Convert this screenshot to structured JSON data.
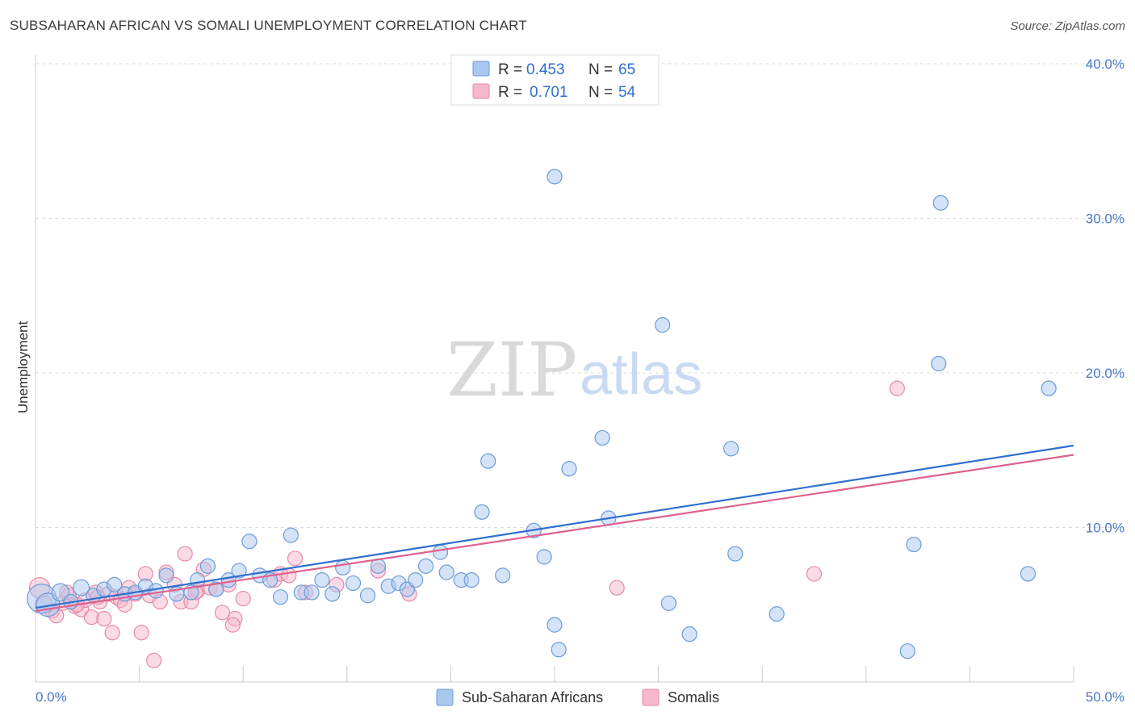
{
  "header": {
    "title": "SUBSAHARAN AFRICAN VS SOMALI UNEMPLOYMENT CORRELATION CHART",
    "source": "Source: ZipAtlas.com"
  },
  "watermark": {
    "part1": "ZIP",
    "part2": "atlas"
  },
  "legend": {
    "rows": [
      {
        "r_label": "R =",
        "r_value": "0.453",
        "n_label": "N =",
        "n_value": "65"
      },
      {
        "r_label": "R =",
        "r_value": "0.701",
        "n_label": "N =",
        "n_value": "54"
      }
    ]
  },
  "colors": {
    "blue_fill": "#a9c8f0",
    "blue_stroke": "#6b9bd8",
    "blue_line": "#2f6fd0",
    "pink_fill": "#f6b8cb",
    "pink_stroke": "#e68aa8",
    "pink_line": "#e0608c",
    "grid": "#dddddd",
    "tick_text": "#4a76c6"
  },
  "chart_data": {
    "type": "scatter",
    "title": "SUBSAHARAN AFRICAN VS SOMALI UNEMPLOYMENT CORRELATION CHART",
    "xlabel": "",
    "ylabel": "Unemployment",
    "xlim": [
      0,
      50
    ],
    "ylim": [
      0,
      40
    ],
    "x_tick_labels": [
      "0.0%",
      "50.0%"
    ],
    "y_ticks": [
      10,
      20,
      30,
      40
    ],
    "y_tick_labels": [
      "10.0%",
      "20.0%",
      "30.0%",
      "40.0%"
    ],
    "grid": true,
    "legend_position": "top-center",
    "series": [
      {
        "name": "Sub-Saharan Africans",
        "R": 0.453,
        "N": 65,
        "trend": [
          [
            0,
            4.8
          ],
          [
            50,
            15.3
          ]
        ],
        "points": [
          [
            0.3,
            5.4,
            2
          ],
          [
            0.6,
            5.0,
            1.6
          ],
          [
            1.2,
            5.8,
            1.2
          ],
          [
            1.7,
            5.2,
            1
          ],
          [
            2.2,
            6.1,
            1.1
          ],
          [
            2.8,
            5.6,
            1
          ],
          [
            3.3,
            6.0,
            1
          ],
          [
            3.8,
            6.3,
            1
          ],
          [
            4.3,
            5.7,
            1
          ],
          [
            4.8,
            5.8,
            1
          ],
          [
            5.3,
            6.2,
            1
          ],
          [
            5.8,
            5.9,
            1
          ],
          [
            6.3,
            6.9,
            1
          ],
          [
            6.8,
            5.7,
            1
          ],
          [
            7.5,
            5.8,
            1
          ],
          [
            7.8,
            6.6,
            1
          ],
          [
            8.3,
            7.5,
            1
          ],
          [
            8.7,
            6.0,
            1
          ],
          [
            9.3,
            6.6,
            1
          ],
          [
            9.8,
            7.2,
            1
          ],
          [
            10.3,
            9.1,
            1
          ],
          [
            10.8,
            6.9,
            1
          ],
          [
            11.3,
            6.6,
            1
          ],
          [
            11.8,
            5.5,
            1
          ],
          [
            12.3,
            9.5,
            1
          ],
          [
            12.8,
            5.8,
            1
          ],
          [
            13.3,
            5.8,
            1
          ],
          [
            13.8,
            6.6,
            1
          ],
          [
            14.3,
            5.7,
            1
          ],
          [
            14.8,
            7.4,
            1
          ],
          [
            15.3,
            6.4,
            1
          ],
          [
            16.0,
            5.6,
            1
          ],
          [
            16.5,
            7.5,
            1
          ],
          [
            17.0,
            6.2,
            1
          ],
          [
            17.5,
            6.4,
            1
          ],
          [
            17.9,
            6.0,
            1
          ],
          [
            18.3,
            6.6,
            1
          ],
          [
            18.8,
            7.5,
            1
          ],
          [
            19.5,
            8.4,
            1
          ],
          [
            19.8,
            7.1,
            1
          ],
          [
            20.5,
            6.6,
            1
          ],
          [
            21.0,
            6.6,
            1
          ],
          [
            21.5,
            11.0,
            1
          ],
          [
            21.8,
            14.3,
            1
          ],
          [
            22.5,
            6.9,
            1
          ],
          [
            24.0,
            9.8,
            1
          ],
          [
            24.5,
            8.1,
            1
          ],
          [
            25.0,
            3.7,
            1
          ],
          [
            25.2,
            2.1,
            1
          ],
          [
            25.7,
            13.8,
            1
          ],
          [
            27.3,
            15.8,
            1
          ],
          [
            27.6,
            10.6,
            1
          ],
          [
            25.0,
            32.7,
            1
          ],
          [
            30.2,
            23.1,
            1
          ],
          [
            30.5,
            5.1,
            1
          ],
          [
            31.5,
            3.1,
            1
          ],
          [
            33.5,
            15.1,
            1
          ],
          [
            33.7,
            8.3,
            1
          ],
          [
            35.7,
            4.4,
            1
          ],
          [
            42.0,
            2.0,
            1
          ],
          [
            42.3,
            8.9,
            1
          ],
          [
            43.5,
            20.6,
            1
          ],
          [
            43.6,
            31.0,
            1
          ],
          [
            47.8,
            7.0,
            1
          ],
          [
            48.8,
            19.0,
            1
          ]
        ]
      },
      {
        "name": "Somalis",
        "R": 0.701,
        "N": 54,
        "trend": [
          [
            0,
            4.6
          ],
          [
            50,
            14.7
          ]
        ],
        "points": [
          [
            0.2,
            6.1,
            1.4
          ],
          [
            0.4,
            5.0,
            1.2
          ],
          [
            0.8,
            4.6,
            1
          ],
          [
            1.0,
            4.3,
            1
          ],
          [
            1.3,
            5.1,
            1
          ],
          [
            1.6,
            5.6,
            1
          ],
          [
            1.9,
            4.9,
            1
          ],
          [
            2.2,
            4.7,
            1
          ],
          [
            2.4,
            5.3,
            1
          ],
          [
            2.7,
            4.2,
            1
          ],
          [
            2.9,
            5.8,
            1
          ],
          [
            3.1,
            5.2,
            1
          ],
          [
            3.3,
            4.1,
            1
          ],
          [
            3.5,
            5.7,
            1
          ],
          [
            3.7,
            3.2,
            1
          ],
          [
            3.9,
            5.5,
            1
          ],
          [
            4.1,
            5.3,
            1
          ],
          [
            4.3,
            5.0,
            1
          ],
          [
            4.5,
            6.1,
            1
          ],
          [
            4.8,
            5.7,
            1
          ],
          [
            5.1,
            3.2,
            1
          ],
          [
            5.3,
            7.0,
            1
          ],
          [
            5.5,
            5.6,
            1
          ],
          [
            5.7,
            1.4,
            1
          ],
          [
            6.0,
            5.2,
            1
          ],
          [
            6.3,
            7.1,
            1
          ],
          [
            6.7,
            6.3,
            1
          ],
          [
            7.0,
            5.2,
            1
          ],
          [
            7.2,
            8.3,
            1
          ],
          [
            7.5,
            5.2,
            1
          ],
          [
            7.8,
            5.9,
            1
          ],
          [
            8.1,
            7.3,
            1
          ],
          [
            8.4,
            6.1,
            1
          ],
          [
            8.7,
            6.0,
            1
          ],
          [
            9.0,
            4.5,
            1
          ],
          [
            9.3,
            6.3,
            1
          ],
          [
            9.6,
            4.1,
            1
          ],
          [
            10.0,
            5.4,
            1
          ],
          [
            11.5,
            6.6,
            1
          ],
          [
            11.8,
            7.0,
            1
          ],
          [
            12.2,
            6.9,
            1
          ],
          [
            12.5,
            8.0,
            1
          ],
          [
            13.0,
            5.8,
            1
          ],
          [
            14.5,
            6.3,
            1
          ],
          [
            16.5,
            7.2,
            1
          ],
          [
            18.0,
            5.7,
            1
          ],
          [
            9.5,
            3.7,
            1
          ],
          [
            7.7,
            5.8,
            1
          ],
          [
            28.0,
            6.1,
            1
          ],
          [
            37.5,
            7.0,
            1
          ],
          [
            41.5,
            19.0,
            1
          ],
          [
            1.5,
            5.8,
            1
          ],
          [
            2.0,
            5.0,
            1
          ],
          [
            3.0,
            5.5,
            1
          ]
        ]
      }
    ]
  }
}
